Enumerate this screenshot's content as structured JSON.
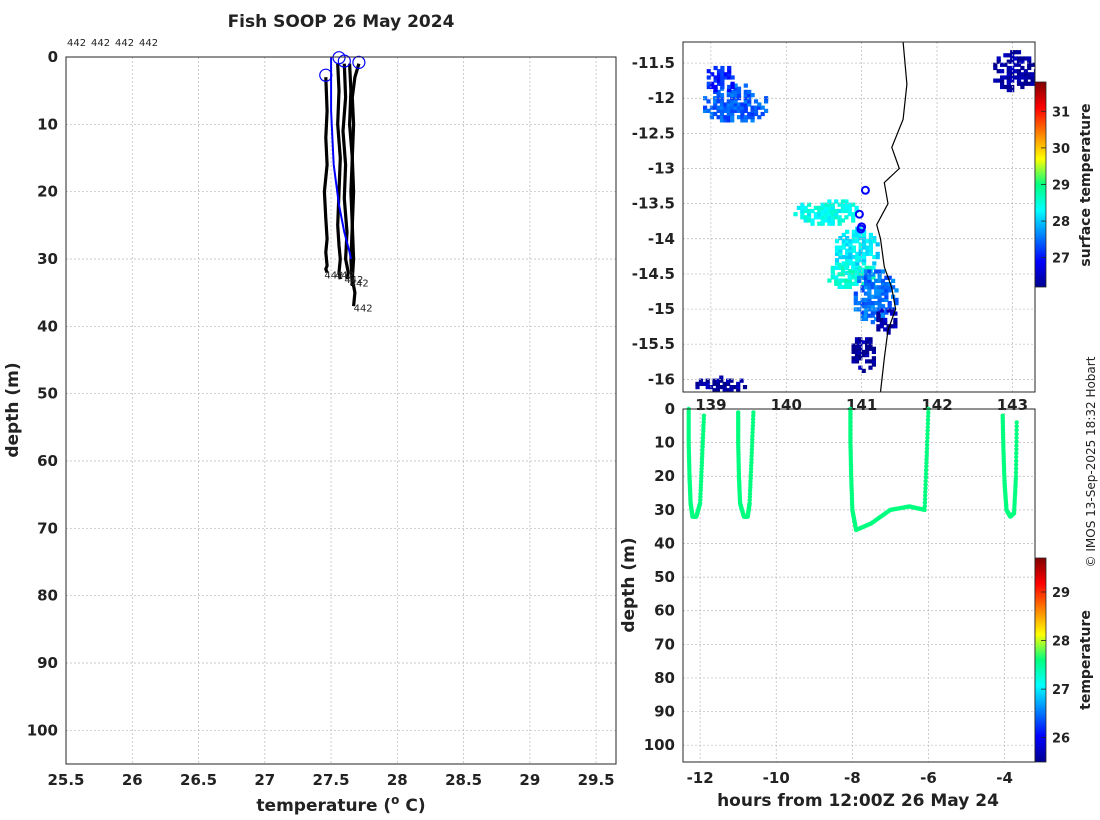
{
  "title": "Fish SOOP 26 May 2024",
  "credit": "© IMOS 13-Sep-2025 18:32 Hobart",
  "chart_data": [
    {
      "id": "profiles",
      "type": "line",
      "xlabel": "temperature (",
      "xlabel_sup": "o",
      "xlabel_end": " C)",
      "ylabel": "depth (m)",
      "xlim": [
        25.5,
        29.65
      ],
      "ylim": [
        0,
        105
      ],
      "y_reversed": true,
      "xticks": [
        "25.5",
        "26",
        "26.5",
        "27",
        "27.5",
        "28",
        "28.5",
        "29",
        "29.5"
      ],
      "yticks": [
        "0",
        "10",
        "20",
        "30",
        "40",
        "50",
        "60",
        "70",
        "80",
        "90",
        "100"
      ],
      "top_labels": [
        "442",
        "442",
        "442",
        "442"
      ],
      "series": [
        {
          "color": "#000000",
          "x": [
            27.46,
            27.47,
            27.46,
            27.47,
            27.45,
            27.46,
            27.47,
            27.46,
            27.47,
            27.46,
            27.47
          ],
          "y": [
            3,
            8,
            12,
            16,
            20,
            24,
            27,
            29,
            31,
            31.5,
            32
          ]
        },
        {
          "color": "#000000",
          "x": [
            27.55,
            27.56,
            27.55,
            27.57,
            27.56,
            27.55,
            27.56,
            27.57,
            27.56,
            27.57
          ],
          "y": [
            1,
            5,
            10,
            15,
            20,
            25,
            28,
            30,
            32,
            33
          ]
        },
        {
          "color": "#000000",
          "x": [
            27.6,
            27.61,
            27.59,
            27.61,
            27.6,
            27.62,
            27.61,
            27.63,
            27.62
          ],
          "y": [
            1,
            6,
            11,
            16,
            21,
            26,
            30,
            32,
            33
          ]
        },
        {
          "color": "#000000",
          "x": [
            27.64,
            27.65,
            27.64,
            27.66,
            27.65,
            27.66,
            27.65,
            27.66
          ],
          "y": [
            1,
            5,
            10,
            15,
            20,
            25,
            30,
            34
          ]
        },
        {
          "color": "#000000",
          "x": [
            27.71,
            27.68,
            27.66,
            27.67,
            27.66,
            27.67,
            27.66,
            27.67,
            27.66,
            27.68,
            27.67
          ],
          "y": [
            1,
            3,
            6,
            10,
            15,
            20,
            25,
            30,
            33,
            35,
            37
          ]
        },
        {
          "color": "#0000ff",
          "x": [
            27.5,
            27.5,
            27.52,
            27.56,
            27.6,
            27.64,
            27.65
          ],
          "y": [
            0,
            8,
            16,
            22,
            26,
            29,
            30
          ]
        }
      ],
      "start_markers": [
        {
          "x": 27.46,
          "y": 2.7
        },
        {
          "x": 27.56,
          "y": 0.1
        },
        {
          "x": 27.6,
          "y": 0.6
        },
        {
          "x": 27.71,
          "y": 0.8
        }
      ],
      "end_labels": [
        {
          "x": 27.45,
          "y": 32.3,
          "text": "442"
        },
        {
          "x": 27.53,
          "y": 32.3,
          "text": "442"
        },
        {
          "x": 27.6,
          "y": 33,
          "text": "442"
        },
        {
          "x": 27.64,
          "y": 33.5,
          "text": "442"
        },
        {
          "x": 27.67,
          "y": 37.2,
          "text": "442"
        }
      ]
    },
    {
      "id": "map",
      "type": "heatmap",
      "xlim": [
        138.63,
        143.3
      ],
      "ylim": [
        -16.18,
        -11.2
      ],
      "xticks": [
        "139",
        "140",
        "141",
        "142",
        "143"
      ],
      "yticks": [
        "-11.5",
        "-12",
        "-12.5",
        "-13",
        "-13.5",
        "-14",
        "-14.5",
        "-15",
        "-15.5",
        "-16"
      ],
      "colorbar_label": "surface temperature",
      "colorbar_ticks": [
        "27",
        "28",
        "29",
        "30",
        "31"
      ],
      "colorbar_range": [
        26.2,
        31.8
      ],
      "coast": [
        [
          141.55,
          -11.2
        ],
        [
          141.6,
          -11.8
        ],
        [
          141.55,
          -12.3
        ],
        [
          141.4,
          -12.7
        ],
        [
          141.5,
          -13.0
        ],
        [
          141.3,
          -13.2
        ],
        [
          141.35,
          -13.5
        ],
        [
          141.2,
          -13.8
        ],
        [
          141.25,
          -14.0
        ],
        [
          141.3,
          -14.4
        ],
        [
          141.4,
          -14.7
        ],
        [
          141.45,
          -15.0
        ],
        [
          141.35,
          -15.3
        ],
        [
          141.3,
          -15.7
        ],
        [
          141.25,
          -16.18
        ]
      ],
      "track": [
        {
          "x": 141.05,
          "y": -13.31
        },
        {
          "x": 140.97,
          "y": -13.65
        },
        {
          "x": 141.0,
          "y": -13.83
        },
        {
          "x": 140.99,
          "y": -13.86
        }
      ],
      "sst_patches": [
        {
          "lon": 139.3,
          "lat": -12.05,
          "rx": 0.45,
          "ry": 0.28,
          "t": 27.4
        },
        {
          "lon": 139.1,
          "lat": -11.7,
          "rx": 0.2,
          "ry": 0.2,
          "t": 27.1
        },
        {
          "lon": 140.5,
          "lat": -13.6,
          "rx": 0.45,
          "ry": 0.2,
          "t": 28.4
        },
        {
          "lon": 140.9,
          "lat": -14.15,
          "rx": 0.3,
          "ry": 0.35,
          "t": 28.2
        },
        {
          "lon": 140.85,
          "lat": -14.5,
          "rx": 0.35,
          "ry": 0.2,
          "t": 28.5
        },
        {
          "lon": 141.15,
          "lat": -14.8,
          "rx": 0.3,
          "ry": 0.4,
          "t": 27.5
        },
        {
          "lon": 141.3,
          "lat": -15.15,
          "rx": 0.15,
          "ry": 0.2,
          "t": 26.4
        },
        {
          "lon": 141.0,
          "lat": -15.6,
          "rx": 0.18,
          "ry": 0.25,
          "t": 26.3
        },
        {
          "lon": 139.1,
          "lat": -16.05,
          "rx": 0.35,
          "ry": 0.12,
          "t": 26.3
        },
        {
          "lon": 143.0,
          "lat": -11.6,
          "rx": 0.3,
          "ry": 0.3,
          "t": 26.3
        }
      ]
    },
    {
      "id": "section",
      "type": "scatter",
      "xlabel": "hours from 12:00Z 26 May 24",
      "ylabel": "depth (m)",
      "xlim": [
        -12.45,
        -3.2
      ],
      "ylim": [
        0,
        105
      ],
      "y_reversed": true,
      "xticks": [
        "-12",
        "-10",
        "-8",
        "-6",
        "-4"
      ],
      "yticks": [
        "0",
        "10",
        "20",
        "30",
        "40",
        "50",
        "60",
        "70",
        "80",
        "90",
        "100"
      ],
      "colorbar_label": "temperature",
      "colorbar_ticks": [
        "26",
        "27",
        "28",
        "29"
      ],
      "colorbar_range": [
        25.5,
        29.7
      ],
      "point_value": 27.6,
      "casts": [
        {
          "x": [
            -12.3,
            -12.3,
            -12.28,
            -12.25,
            -12.2,
            -12.1,
            -12.0,
            -11.95,
            -11.9
          ],
          "y": [
            0,
            10,
            20,
            28,
            32,
            32,
            28,
            15,
            2
          ]
        },
        {
          "x": [
            -11.0,
            -11.0,
            -10.98,
            -10.95,
            -10.85,
            -10.75,
            -10.7,
            -10.65,
            -10.6
          ],
          "y": [
            1,
            10,
            20,
            28,
            32,
            32,
            28,
            15,
            1
          ]
        },
        {
          "x": [
            -8.05,
            -8.05,
            -8.03,
            -8.0,
            -7.9,
            -7.5,
            -7.0,
            -6.5,
            -6.1,
            -6.05,
            -6.0
          ],
          "y": [
            0,
            10,
            20,
            30,
            36,
            34,
            30,
            29,
            30,
            15,
            0
          ]
        },
        {
          "x": [
            -4.05,
            -4.03,
            -4.0,
            -3.95,
            -3.85,
            -3.75,
            -3.7,
            -3.68
          ],
          "y": [
            2,
            12,
            22,
            30,
            32,
            31,
            20,
            4
          ]
        }
      ]
    }
  ]
}
